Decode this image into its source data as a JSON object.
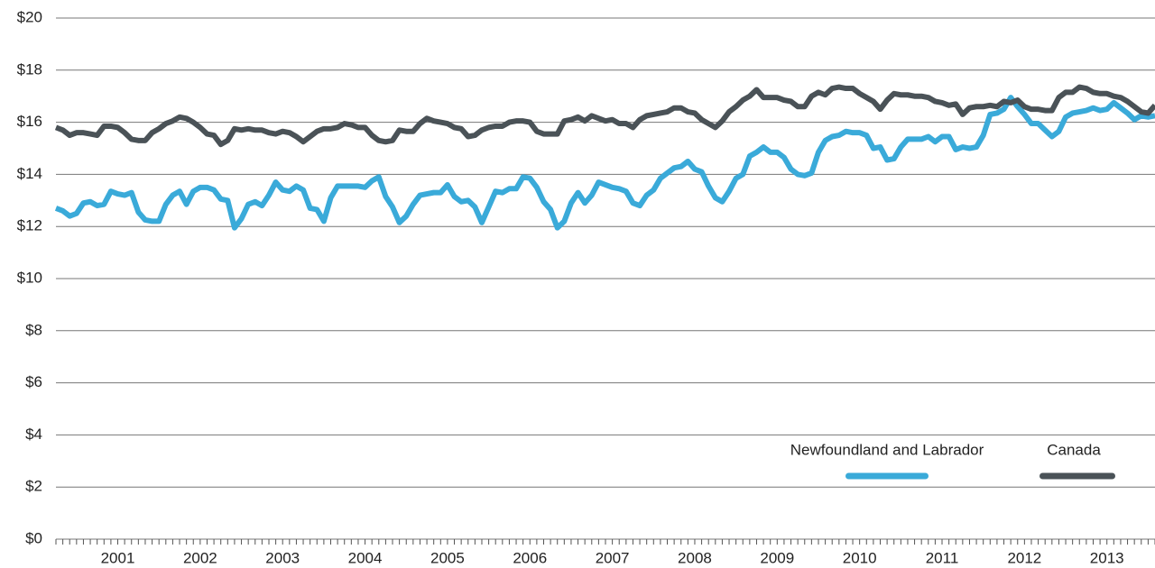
{
  "chart_data": {
    "type": "line",
    "categories": [
      null,
      null,
      null,
      null,
      null,
      null,
      null,
      null,
      null,
      "2001",
      null,
      null,
      null,
      null,
      null,
      null,
      null,
      null,
      null,
      null,
      null,
      "2002",
      null,
      null,
      null,
      null,
      null,
      null,
      null,
      null,
      null,
      null,
      null,
      "2003",
      null,
      null,
      null,
      null,
      null,
      null,
      null,
      null,
      null,
      null,
      null,
      "2004",
      null,
      null,
      null,
      null,
      null,
      null,
      null,
      null,
      null,
      null,
      null,
      "2005",
      null,
      null,
      null,
      null,
      null,
      null,
      null,
      null,
      null,
      null,
      null,
      "2006",
      null,
      null,
      null,
      null,
      null,
      null,
      null,
      null,
      null,
      null,
      null,
      "2007",
      null,
      null,
      null,
      null,
      null,
      null,
      null,
      null,
      null,
      null,
      null,
      "2008",
      null,
      null,
      null,
      null,
      null,
      null,
      null,
      null,
      null,
      null,
      null,
      "2009",
      null,
      null,
      null,
      null,
      null,
      null,
      null,
      null,
      null,
      null,
      null,
      "2010",
      null,
      null,
      null,
      null,
      null,
      null,
      null,
      null,
      null,
      null,
      null,
      "2011",
      null,
      null,
      null,
      null,
      null,
      null,
      null,
      null,
      null,
      null,
      null,
      "2012",
      null,
      null,
      null,
      null,
      null,
      null,
      null,
      null,
      null,
      null,
      null,
      "2013",
      null,
      null,
      null,
      null,
      null,
      null,
      null
    ],
    "series": [
      {
        "name": "Newfoundland and Labrador",
        "color": "#3aaad9",
        "values": [
          12.7,
          12.6,
          12.4,
          12.5,
          12.9,
          12.95,
          12.8,
          12.85,
          13.35,
          13.25,
          13.2,
          13.3,
          12.55,
          12.25,
          12.2,
          12.2,
          12.85,
          13.2,
          13.35,
          12.85,
          13.35,
          13.5,
          13.5,
          13.4,
          13.05,
          13.0,
          11.95,
          12.3,
          12.85,
          12.95,
          12.8,
          13.2,
          13.7,
          13.4,
          13.35,
          13.55,
          13.4,
          12.7,
          12.65,
          12.2,
          13.1,
          13.55,
          13.55,
          13.55,
          13.55,
          13.5,
          13.75,
          13.9,
          13.15,
          12.75,
          12.15,
          12.4,
          12.85,
          13.2,
          13.25,
          13.3,
          13.3,
          13.6,
          13.15,
          12.95,
          13.0,
          12.75,
          12.15,
          12.75,
          13.35,
          13.3,
          13.45,
          13.45,
          13.9,
          13.85,
          13.5,
          12.95,
          12.65,
          11.95,
          12.2,
          12.9,
          13.3,
          12.9,
          13.2,
          13.7,
          13.6,
          13.5,
          13.45,
          13.35,
          12.9,
          12.8,
          13.2,
          13.4,
          13.85,
          14.05,
          14.25,
          14.3,
          14.5,
          14.2,
          14.1,
          13.55,
          13.1,
          12.95,
          13.35,
          13.85,
          14.0,
          14.7,
          14.85,
          15.05,
          14.85,
          14.85,
          14.65,
          14.2,
          14.0,
          13.95,
          14.05,
          14.85,
          15.3,
          15.45,
          15.5,
          15.65,
          15.6,
          15.6,
          15.5,
          15.0,
          15.05,
          14.55,
          14.6,
          15.05,
          15.35,
          15.35,
          15.35,
          15.45,
          15.25,
          15.45,
          15.45,
          14.95,
          15.05,
          15.0,
          15.05,
          15.5,
          16.3,
          16.35,
          16.5,
          16.95,
          16.6,
          16.3,
          15.95,
          15.95,
          15.7,
          15.45,
          15.65,
          16.2,
          16.35,
          16.4,
          16.45,
          16.55,
          16.45,
          16.5,
          16.75,
          16.55,
          16.35,
          16.1,
          16.25,
          16.2,
          16.25
        ]
      },
      {
        "name": "Canada",
        "color": "#4a5257",
        "values": [
          15.8,
          15.7,
          15.5,
          15.6,
          15.6,
          15.55,
          15.5,
          15.85,
          15.85,
          15.8,
          15.6,
          15.35,
          15.3,
          15.3,
          15.6,
          15.75,
          15.95,
          16.05,
          16.2,
          16.15,
          16.0,
          15.8,
          15.55,
          15.5,
          15.15,
          15.3,
          15.75,
          15.7,
          15.75,
          15.7,
          15.7,
          15.6,
          15.55,
          15.65,
          15.6,
          15.45,
          15.25,
          15.45,
          15.65,
          15.75,
          15.75,
          15.8,
          15.95,
          15.9,
          15.8,
          15.8,
          15.5,
          15.3,
          15.25,
          15.3,
          15.7,
          15.65,
          15.65,
          15.95,
          16.15,
          16.05,
          16.0,
          15.95,
          15.8,
          15.75,
          15.45,
          15.5,
          15.7,
          15.8,
          15.85,
          15.85,
          16.0,
          16.05,
          16.05,
          16.0,
          15.65,
          15.55,
          15.55,
          15.55,
          16.05,
          16.1,
          16.2,
          16.05,
          16.25,
          16.15,
          16.05,
          16.1,
          15.95,
          15.95,
          15.8,
          16.1,
          16.25,
          16.3,
          16.35,
          16.4,
          16.55,
          16.55,
          16.4,
          16.35,
          16.1,
          15.95,
          15.8,
          16.05,
          16.4,
          16.6,
          16.85,
          17.0,
          17.25,
          16.95,
          16.95,
          16.95,
          16.85,
          16.8,
          16.6,
          16.6,
          17.0,
          17.15,
          17.05,
          17.3,
          17.35,
          17.3,
          17.3,
          17.1,
          16.95,
          16.8,
          16.5,
          16.85,
          17.1,
          17.05,
          17.05,
          17.0,
          17.0,
          16.95,
          16.8,
          16.75,
          16.65,
          16.7,
          16.3,
          16.55,
          16.6,
          16.6,
          16.65,
          16.6,
          16.8,
          16.75,
          16.85,
          16.6,
          16.5,
          16.5,
          16.45,
          16.45,
          16.95,
          17.15,
          17.15,
          17.35,
          17.3,
          17.15,
          17.1,
          17.1,
          17.0,
          16.95,
          16.8,
          16.6,
          16.4,
          16.35,
          16.65
        ]
      }
    ],
    "ylim": [
      0,
      20
    ],
    "yticks": [
      {
        "value": 0,
        "label": "$0"
      },
      {
        "value": 2,
        "label": "$2"
      },
      {
        "value": 4,
        "label": "$4"
      },
      {
        "value": 6,
        "label": "$6"
      },
      {
        "value": 8,
        "label": "$8"
      },
      {
        "value": 10,
        "label": "$10"
      },
      {
        "value": 12,
        "label": "$12"
      },
      {
        "value": 14,
        "label": "$14"
      },
      {
        "value": 16,
        "label": "$16"
      },
      {
        "value": 18,
        "label": "$18"
      },
      {
        "value": 20,
        "label": "$20"
      }
    ],
    "grid": true,
    "legend": "lower right"
  }
}
